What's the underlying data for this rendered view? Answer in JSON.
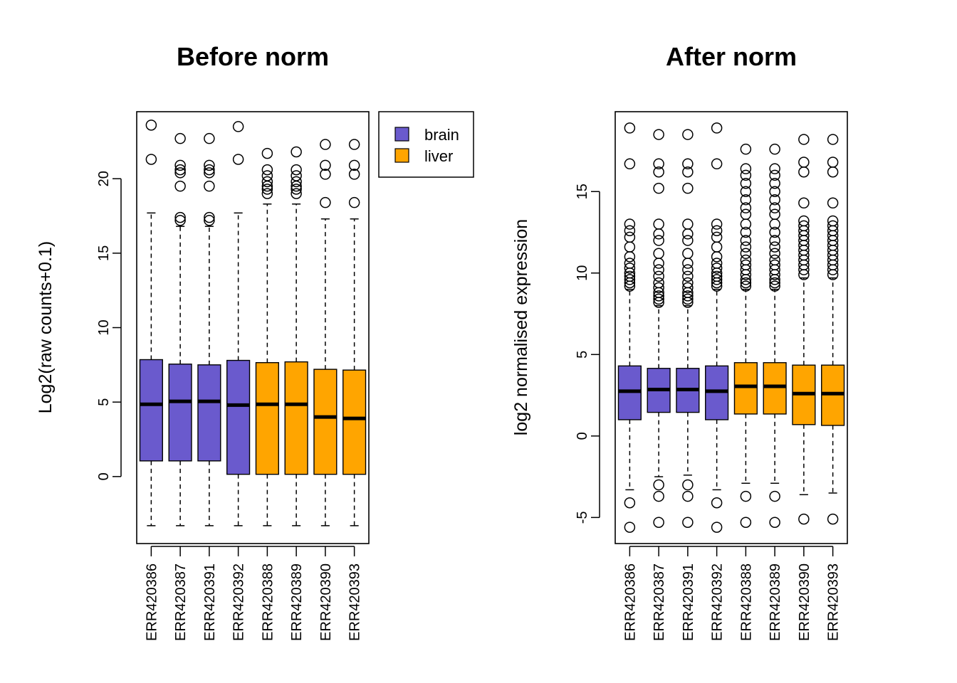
{
  "chart_data": [
    {
      "type": "boxplot",
      "title": "Before norm",
      "xlabel": "",
      "ylabel": "Log2(raw counts+0.1)",
      "ylim": [
        -4.5,
        24.5
      ],
      "yticks": [
        0,
        5,
        10,
        15,
        20
      ],
      "legend": {
        "position": "top-right outside",
        "entries": [
          {
            "label": "brain",
            "color": "#6A5ACD"
          },
          {
            "label": "liver",
            "color": "#FFA500"
          }
        ]
      },
      "samples": [
        {
          "name": "ERR420386",
          "tissue": "brain",
          "color": "#6A5ACD",
          "whisker_low": -3.3,
          "q1": 1.05,
          "median": 4.85,
          "q3": 7.85,
          "whisker_high": 17.7,
          "outliers": [
            21.3,
            23.6
          ]
        },
        {
          "name": "ERR420387",
          "tissue": "brain",
          "color": "#6A5ACD",
          "whisker_low": -3.3,
          "q1": 1.05,
          "median": 5.05,
          "q3": 7.55,
          "whisker_high": 16.8,
          "outliers": [
            17.2,
            17.4,
            19.5,
            20.4,
            20.6,
            20.9,
            22.7
          ]
        },
        {
          "name": "ERR420391",
          "tissue": "brain",
          "color": "#6A5ACD",
          "whisker_low": -3.3,
          "q1": 1.05,
          "median": 5.05,
          "q3": 7.5,
          "whisker_high": 16.8,
          "outliers": [
            17.2,
            17.4,
            19.5,
            20.4,
            20.6,
            20.9,
            22.7
          ]
        },
        {
          "name": "ERR420392",
          "tissue": "brain",
          "color": "#6A5ACD",
          "whisker_low": -3.3,
          "q1": 0.15,
          "median": 4.8,
          "q3": 7.8,
          "whisker_high": 17.7,
          "outliers": [
            21.3,
            23.5
          ]
        },
        {
          "name": "ERR420388",
          "tissue": "liver",
          "color": "#FFA500",
          "whisker_low": -3.3,
          "q1": 0.15,
          "median": 4.85,
          "q3": 7.65,
          "whisker_high": 18.3,
          "outliers": [
            19.0,
            19.3,
            19.5,
            19.8,
            20.2,
            20.6,
            21.7
          ]
        },
        {
          "name": "ERR420389",
          "tissue": "liver",
          "color": "#FFA500",
          "whisker_low": -3.3,
          "q1": 0.15,
          "median": 4.85,
          "q3": 7.7,
          "whisker_high": 18.3,
          "outliers": [
            19.0,
            19.3,
            19.5,
            19.8,
            20.2,
            20.6,
            21.8
          ]
        },
        {
          "name": "ERR420390",
          "tissue": "liver",
          "color": "#FFA500",
          "whisker_low": -3.3,
          "q1": 0.15,
          "median": 4.0,
          "q3": 7.2,
          "whisker_high": 17.3,
          "outliers": [
            18.4,
            20.3,
            20.9,
            22.3
          ]
        },
        {
          "name": "ERR420393",
          "tissue": "liver",
          "color": "#FFA500",
          "whisker_low": -3.3,
          "q1": 0.15,
          "median": 3.9,
          "q3": 7.15,
          "whisker_high": 17.3,
          "outliers": [
            18.4,
            20.3,
            20.9,
            22.3
          ]
        }
      ]
    },
    {
      "type": "boxplot",
      "title": "After norm",
      "xlabel": "",
      "ylabel": "log2 normalised expression",
      "ylim": [
        -6.6,
        19.9
      ],
      "yticks": [
        -5,
        0,
        5,
        10,
        15
      ],
      "samples": [
        {
          "name": "ERR420386",
          "tissue": "brain",
          "color": "#6A5ACD",
          "whisker_low": -3.3,
          "q1": 1.0,
          "median": 2.75,
          "q3": 4.3,
          "whisker_high": 9.0,
          "outliers": [
            -5.6,
            -4.1,
            9.2,
            9.4,
            9.6,
            9.8,
            10.0,
            10.3,
            10.6,
            11.0,
            11.6,
            12.2,
            12.6,
            13.0,
            16.7,
            18.9
          ]
        },
        {
          "name": "ERR420387",
          "tissue": "brain",
          "color": "#6A5ACD",
          "whisker_low": -2.5,
          "q1": 1.45,
          "median": 2.85,
          "q3": 4.15,
          "whisker_high": 8.0,
          "outliers": [
            -5.3,
            -3.7,
            -3.0,
            8.2,
            8.4,
            8.6,
            8.8,
            9.1,
            9.4,
            9.8,
            10.2,
            10.6,
            11.2,
            12.0,
            12.4,
            13.0,
            15.2,
            16.2,
            16.7,
            18.5
          ]
        },
        {
          "name": "ERR420391",
          "tissue": "brain",
          "color": "#6A5ACD",
          "whisker_low": -2.4,
          "q1": 1.45,
          "median": 2.85,
          "q3": 4.15,
          "whisker_high": 8.0,
          "outliers": [
            -5.3,
            -3.7,
            -3.0,
            8.2,
            8.4,
            8.6,
            8.8,
            9.1,
            9.4,
            9.8,
            10.2,
            10.6,
            11.2,
            12.0,
            12.4,
            13.0,
            15.2,
            16.2,
            16.7,
            18.5
          ]
        },
        {
          "name": "ERR420392",
          "tissue": "brain",
          "color": "#6A5ACD",
          "whisker_low": -3.3,
          "q1": 1.0,
          "median": 2.75,
          "q3": 4.3,
          "whisker_high": 9.0,
          "outliers": [
            -5.6,
            -4.1,
            9.2,
            9.4,
            9.6,
            9.8,
            10.0,
            10.3,
            10.6,
            11.0,
            11.6,
            12.2,
            12.6,
            13.0,
            16.7,
            18.9
          ]
        },
        {
          "name": "ERR420388",
          "tissue": "liver",
          "color": "#FFA500",
          "whisker_low": -2.9,
          "q1": 1.35,
          "median": 3.05,
          "q3": 4.5,
          "whisker_high": 9.0,
          "outliers": [
            -5.3,
            -3.7,
            9.2,
            9.4,
            9.6,
            9.9,
            10.2,
            10.5,
            10.8,
            11.2,
            11.6,
            12.0,
            12.5,
            13.0,
            13.6,
            14.0,
            14.5,
            15.0,
            15.5,
            16.0,
            16.4,
            17.6
          ]
        },
        {
          "name": "ERR420389",
          "tissue": "liver",
          "color": "#FFA500",
          "whisker_low": -2.9,
          "q1": 1.35,
          "median": 3.05,
          "q3": 4.5,
          "whisker_high": 9.0,
          "outliers": [
            -5.3,
            -3.7,
            9.2,
            9.4,
            9.6,
            9.9,
            10.2,
            10.5,
            10.8,
            11.2,
            11.6,
            12.0,
            12.5,
            13.0,
            13.6,
            14.0,
            14.5,
            15.0,
            15.5,
            16.0,
            16.4,
            17.6
          ]
        },
        {
          "name": "ERR420390",
          "tissue": "liver",
          "color": "#FFA500",
          "whisker_low": -3.6,
          "q1": 0.7,
          "median": 2.6,
          "q3": 4.35,
          "whisker_high": 9.7,
          "outliers": [
            -5.1,
            9.9,
            10.2,
            10.5,
            10.8,
            11.1,
            11.4,
            11.7,
            12.0,
            12.3,
            12.6,
            12.9,
            13.2,
            14.3,
            16.2,
            16.8,
            18.2
          ]
        },
        {
          "name": "ERR420393",
          "tissue": "liver",
          "color": "#FFA500",
          "whisker_low": -3.5,
          "q1": 0.65,
          "median": 2.6,
          "q3": 4.35,
          "whisker_high": 9.7,
          "outliers": [
            -5.1,
            9.9,
            10.2,
            10.5,
            10.8,
            11.1,
            11.4,
            11.7,
            12.0,
            12.3,
            12.6,
            12.9,
            13.2,
            14.3,
            16.2,
            16.8,
            18.2
          ]
        }
      ]
    }
  ]
}
